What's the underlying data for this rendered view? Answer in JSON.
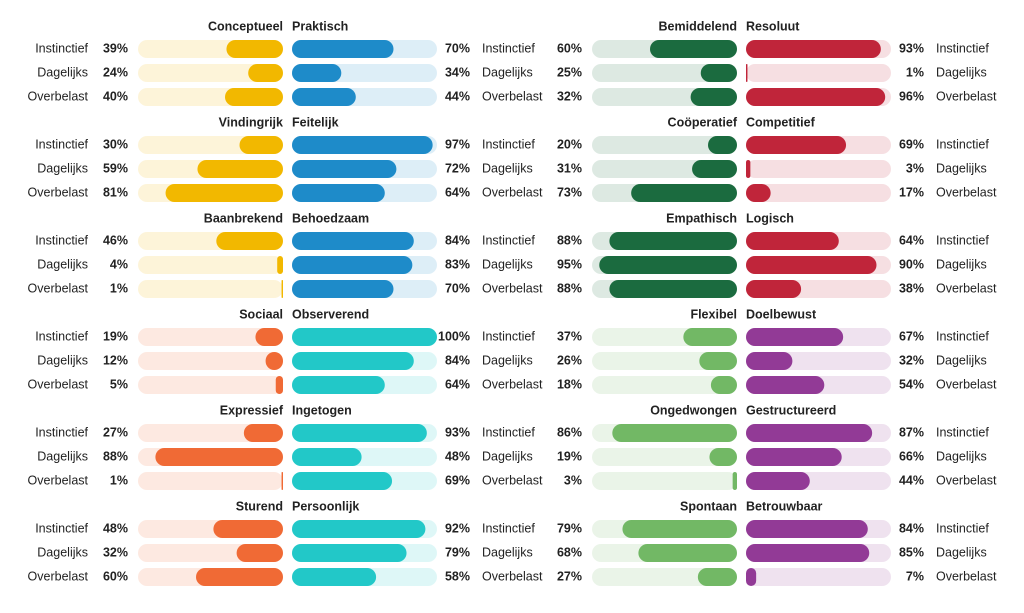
{
  "chart_data": [
    {
      "type": "bar",
      "title": "Conceptueel",
      "categories": [
        "Instinctief",
        "Dagelijks",
        "Overbelast"
      ],
      "values": [
        39,
        24,
        40
      ],
      "value_labels": [
        "39%",
        "24%",
        "40%"
      ],
      "color": "#f2b800",
      "xlim": [
        0,
        100
      ]
    },
    {
      "type": "bar",
      "title": "Praktisch",
      "categories": [
        "Instinctief",
        "Dagelijks",
        "Overbelast"
      ],
      "values": [
        70,
        34,
        44
      ],
      "value_labels": [
        "70%",
        "34%",
        "44%"
      ],
      "color": "#1e8bc9",
      "xlim": [
        0,
        100
      ]
    },
    {
      "type": "bar",
      "title": "Vindingrijk",
      "categories": [
        "Instinctief",
        "Dagelijks",
        "Overbelast"
      ],
      "values": [
        30,
        59,
        81
      ],
      "value_labels": [
        "30%",
        "59%",
        "81%"
      ],
      "color": "#f2b800",
      "xlim": [
        0,
        100
      ]
    },
    {
      "type": "bar",
      "title": "Feitelijk",
      "categories": [
        "Instinctief",
        "Dagelijks",
        "Overbelast"
      ],
      "values": [
        97,
        72,
        64
      ],
      "value_labels": [
        "97%",
        "72%",
        "64%"
      ],
      "color": "#1e8bc9",
      "xlim": [
        0,
        100
      ]
    },
    {
      "type": "bar",
      "title": "Baanbrekend",
      "categories": [
        "Instinctief",
        "Dagelijks",
        "Overbelast"
      ],
      "values": [
        46,
        4,
        1
      ],
      "value_labels": [
        "46%",
        "4%",
        "1%"
      ],
      "color": "#f2b800",
      "xlim": [
        0,
        100
      ]
    },
    {
      "type": "bar",
      "title": "Behoedzaam",
      "categories": [
        "Instinctief",
        "Dagelijks",
        "Overbelast"
      ],
      "values": [
        84,
        83,
        70
      ],
      "value_labels": [
        "84%",
        "83%",
        "70%"
      ],
      "color": "#1e8bc9",
      "xlim": [
        0,
        100
      ]
    },
    {
      "type": "bar",
      "title": "Sociaal",
      "categories": [
        "Instinctief",
        "Dagelijks",
        "Overbelast"
      ],
      "values": [
        19,
        12,
        5
      ],
      "value_labels": [
        "19%",
        "12%",
        "5%"
      ],
      "color": "#f06a35",
      "xlim": [
        0,
        100
      ]
    },
    {
      "type": "bar",
      "title": "Observerend",
      "categories": [
        "Instinctief",
        "Dagelijks",
        "Overbelast"
      ],
      "values": [
        100,
        84,
        64
      ],
      "value_labels": [
        "100%",
        "84%",
        "64%"
      ],
      "color": "#22c8c8",
      "xlim": [
        0,
        100
      ]
    },
    {
      "type": "bar",
      "title": "Expressief",
      "categories": [
        "Instinctief",
        "Dagelijks",
        "Overbelast"
      ],
      "values": [
        27,
        88,
        1
      ],
      "value_labels": [
        "27%",
        "88%",
        "1%"
      ],
      "color": "#f06a35",
      "xlim": [
        0,
        100
      ]
    },
    {
      "type": "bar",
      "title": "Ingetogen",
      "categories": [
        "Instinctief",
        "Dagelijks",
        "Overbelast"
      ],
      "values": [
        93,
        48,
        69
      ],
      "value_labels": [
        "93%",
        "48%",
        "69%"
      ],
      "color": "#22c8c8",
      "xlim": [
        0,
        100
      ]
    },
    {
      "type": "bar",
      "title": "Sturend",
      "categories": [
        "Instinctief",
        "Dagelijks",
        "Overbelast"
      ],
      "values": [
        48,
        32,
        60
      ],
      "value_labels": [
        "48%",
        "32%",
        "60%"
      ],
      "color": "#f06a35",
      "xlim": [
        0,
        100
      ]
    },
    {
      "type": "bar",
      "title": "Persoonlijk",
      "categories": [
        "Instinctief",
        "Dagelijks",
        "Overbelast"
      ],
      "values": [
        92,
        79,
        58
      ],
      "value_labels": [
        "92%",
        "79%",
        "58%"
      ],
      "color": "#22c8c8",
      "xlim": [
        0,
        100
      ]
    },
    {
      "type": "bar",
      "title": "Bemiddelend",
      "values": [
        60,
        25,
        32
      ],
      "value_labels": [
        "60%",
        "25%",
        "32%"
      ],
      "color": "#1b6b3f",
      "xlim": [
        0,
        100
      ]
    },
    {
      "type": "bar",
      "title": "Resoluut",
      "categories": [
        "Instinctief",
        "Dagelijks",
        "Overbelast"
      ],
      "values": [
        93,
        1,
        96
      ],
      "value_labels": [
        "93%",
        "1%",
        "96%"
      ],
      "color": "#c0253a",
      "xlim": [
        0,
        100
      ]
    },
    {
      "type": "bar",
      "title": "Coöperatief",
      "values": [
        20,
        31,
        73
      ],
      "value_labels": [
        "20%",
        "31%",
        "73%"
      ],
      "color": "#1b6b3f",
      "xlim": [
        0,
        100
      ]
    },
    {
      "type": "bar",
      "title": "Competitief",
      "categories": [
        "Instinctief",
        "Dagelijks",
        "Overbelast"
      ],
      "values": [
        69,
        3,
        17
      ],
      "value_labels": [
        "69%",
        "3%",
        "17%"
      ],
      "color": "#c0253a",
      "xlim": [
        0,
        100
      ]
    },
    {
      "type": "bar",
      "title": "Empathisch",
      "values": [
        88,
        95,
        88
      ],
      "value_labels": [
        "88%",
        "95%",
        "88%"
      ],
      "color": "#1b6b3f",
      "xlim": [
        0,
        100
      ]
    },
    {
      "type": "bar",
      "title": "Logisch",
      "categories": [
        "Instinctief",
        "Dagelijks",
        "Overbelast"
      ],
      "values": [
        64,
        90,
        38
      ],
      "value_labels": [
        "64%",
        "90%",
        "38%"
      ],
      "color": "#c0253a",
      "xlim": [
        0,
        100
      ]
    },
    {
      "type": "bar",
      "title": "Flexibel",
      "values": [
        37,
        26,
        18
      ],
      "value_labels": [
        "37%",
        "26%",
        "18%"
      ],
      "color": "#72b865",
      "xlim": [
        0,
        100
      ]
    },
    {
      "type": "bar",
      "title": "Doelbewust",
      "categories": [
        "Instinctief",
        "Dagelijks",
        "Overbelast"
      ],
      "values": [
        67,
        32,
        54
      ],
      "value_labels": [
        "67%",
        "32%",
        "54%"
      ],
      "color": "#923a96",
      "xlim": [
        0,
        100
      ]
    },
    {
      "type": "bar",
      "title": "Ongedwongen",
      "values": [
        86,
        19,
        3
      ],
      "value_labels": [
        "86%",
        "19%",
        "3%"
      ],
      "color": "#72b865",
      "xlim": [
        0,
        100
      ]
    },
    {
      "type": "bar",
      "title": "Gestructureerd",
      "categories": [
        "Instinctief",
        "Dagelijks",
        "Overbelast"
      ],
      "values": [
        87,
        66,
        44
      ],
      "value_labels": [
        "87%",
        "66%",
        "44%"
      ],
      "color": "#923a96",
      "xlim": [
        0,
        100
      ]
    },
    {
      "type": "bar",
      "title": "Spontaan",
      "values": [
        79,
        68,
        27
      ],
      "value_labels": [
        "79%",
        "68%",
        "27%"
      ],
      "color": "#72b865",
      "xlim": [
        0,
        100
      ]
    },
    {
      "type": "bar",
      "title": "Betrouwbaar",
      "categories": [
        "Instinctief",
        "Dagelijks",
        "Overbelast"
      ],
      "values": [
        84,
        85,
        7
      ],
      "value_labels": [
        "84%",
        "85%",
        "7%"
      ],
      "color": "#923a96",
      "xlim": [
        0,
        100
      ]
    }
  ]
}
